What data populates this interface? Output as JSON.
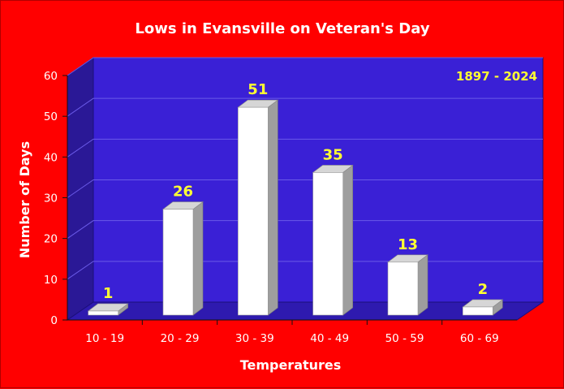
{
  "chart_data": {
    "type": "bar",
    "title": "Lows in Evansville on Veteran's Day",
    "annotation": "1897 - 2024",
    "xlabel": "Temperatures",
    "ylabel": "Number of Days",
    "categories": [
      "10 - 19",
      "20 - 29",
      "30 - 39",
      "40 - 49",
      "50 - 59",
      "60 - 69"
    ],
    "values": [
      1,
      26,
      51,
      35,
      13,
      2
    ],
    "yticks": [
      0,
      10,
      20,
      30,
      40,
      50,
      60
    ],
    "ylim": [
      0,
      60
    ],
    "grid": true,
    "legend": "none",
    "style": "3d-column",
    "colors": {
      "background": "#ff0000",
      "plot_wall": "#3a20d6",
      "side_wall": "#2a1896",
      "floor": "#2e1aaf",
      "bar_face": "#ffffff",
      "bar_side": "#9e9e9e",
      "bar_top": "#d6d6d6",
      "data_label": "#ffff33",
      "text": "#ffffff"
    }
  }
}
